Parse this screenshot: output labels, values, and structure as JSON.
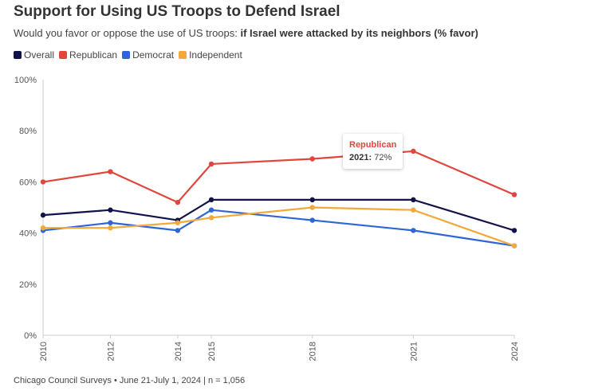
{
  "header": {
    "title": "Support for Using US Troops to Defend Israel",
    "subtitle_prefix": "Would you favor or oppose the use of US troops: ",
    "subtitle_bold": "if Israel were attacked by its neighbors (% favor)"
  },
  "footer": {
    "text": "Chicago Council Surveys • June 21-July 1, 2024 | n = 1,056"
  },
  "tooltip": {
    "series": "Republican",
    "year": "2021:",
    "value": "72%"
  },
  "chart_data": {
    "type": "line",
    "x": [
      2010,
      2012,
      2014,
      2015,
      2018,
      2021,
      2024
    ],
    "x_tick_labels": [
      "2010",
      "2012",
      "2014",
      "2015",
      "2018",
      "2021",
      "2024"
    ],
    "y_tick_labels": [
      "0%",
      "20%",
      "40%",
      "60%",
      "80%",
      "100%"
    ],
    "ylim": [
      0,
      100
    ],
    "grid": false,
    "legend_position": "top-left",
    "series": [
      {
        "name": "Overall",
        "color": "#12124a",
        "values": [
          47,
          49,
          45,
          53,
          53,
          53,
          41
        ]
      },
      {
        "name": "Republican",
        "color": "#e0463c",
        "values": [
          60,
          64,
          52,
          67,
          69,
          72,
          55
        ]
      },
      {
        "name": "Democrat",
        "color": "#2f66d6",
        "values": [
          41,
          44,
          41,
          49,
          45,
          41,
          35
        ]
      },
      {
        "name": "Independent",
        "color": "#f2a93b",
        "values": [
          42,
          42,
          44,
          46,
          50,
          49,
          35
        ]
      }
    ]
  }
}
